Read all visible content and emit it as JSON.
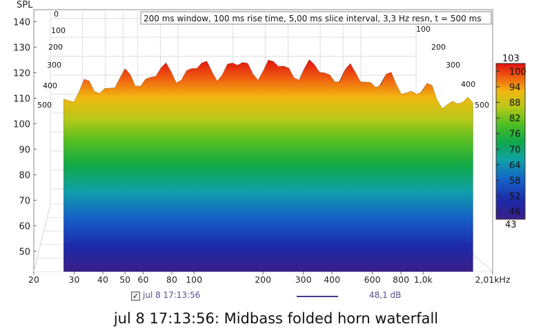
{
  "chart_data": {
    "type": "waterfall",
    "y_axis": {
      "label": "SPL",
      "ticks": [
        140,
        130,
        120,
        110,
        100,
        90,
        80,
        70,
        60,
        50
      ],
      "range": [
        42,
        142
      ]
    },
    "x_axis": {
      "unit": "kHz",
      "ticks": [
        {
          "freq": 20,
          "label": "20"
        },
        {
          "freq": 30,
          "label": "30"
        },
        {
          "freq": 40,
          "label": "40"
        },
        {
          "freq": 50,
          "label": "50"
        },
        {
          "freq": 60,
          "label": "60"
        },
        {
          "freq": 80,
          "label": "80"
        },
        {
          "freq": 100,
          "label": "100"
        },
        {
          "freq": 200,
          "label": "200"
        },
        {
          "freq": 300,
          "label": "300"
        },
        {
          "freq": 400,
          "label": "400"
        },
        {
          "freq": 600,
          "label": "600"
        },
        {
          "freq": 800,
          "label": "800"
        },
        {
          "freq": 1000,
          "label": "1,0k"
        },
        {
          "freq": 2010,
          "label": "2,01kHz"
        }
      ],
      "range": [
        20,
        2010
      ],
      "scale": "log"
    },
    "depth_axis": {
      "unit": "ms",
      "ticks": [
        "0",
        "100",
        "200",
        "300",
        "400",
        "500"
      ]
    },
    "info": "200 ms window, 100 ms rise time, 5,00 ms slice interval, 3,3 Hz resn, t = 500 ms",
    "colorbar": {
      "min_label": "43",
      "max_label": "103",
      "ticks": [
        "100",
        "94",
        "88",
        "82",
        "76",
        "70",
        "64",
        "58",
        "52",
        "46"
      ],
      "range": [
        43,
        103
      ]
    },
    "peak_spl_estimate": 122,
    "time_slices": 101,
    "grid": true
  },
  "legend": {
    "checked": true,
    "name": "jul 8 17:13:56",
    "value": "48,1 dB",
    "line_color": "#3b3b8e"
  },
  "title": "jul 8 17:13:56: Midbass folded horn waterfall"
}
